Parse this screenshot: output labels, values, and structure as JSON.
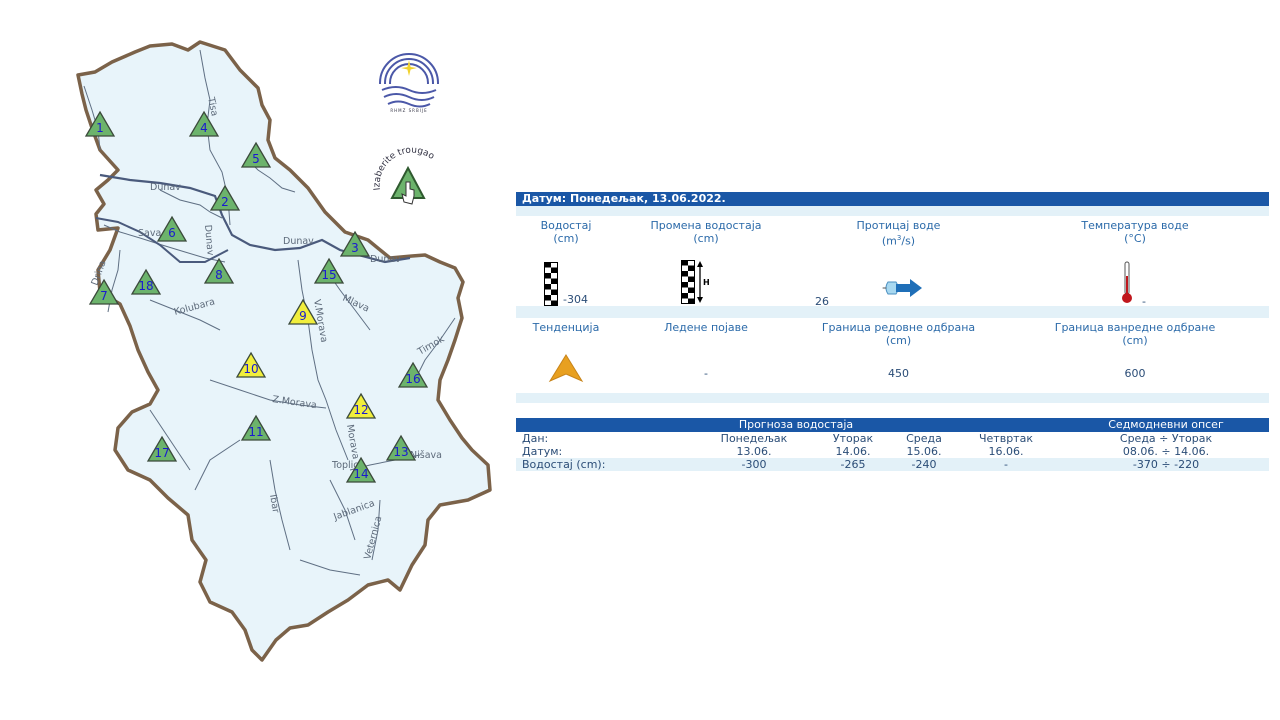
{
  "map": {
    "rivers": [
      "Tisa",
      "Dunav",
      "Dunav",
      "Dunav",
      "Dunav",
      "Sava",
      "Drina",
      "Kolubara",
      "V.Morava",
      "Mlava",
      "Timok",
      "Z.Morava",
      "Morava",
      "Nišava",
      "Toplica",
      "Jablanica",
      "Veternica",
      "Ibar"
    ],
    "stations": [
      {
        "n": "1",
        "color": "green"
      },
      {
        "n": "2",
        "color": "green"
      },
      {
        "n": "3",
        "color": "green"
      },
      {
        "n": "4",
        "color": "green"
      },
      {
        "n": "5",
        "color": "green"
      },
      {
        "n": "6",
        "color": "green"
      },
      {
        "n": "7",
        "color": "green"
      },
      {
        "n": "8",
        "color": "green"
      },
      {
        "n": "9",
        "color": "yellow"
      },
      {
        "n": "10",
        "color": "yellow"
      },
      {
        "n": "11",
        "color": "green"
      },
      {
        "n": "12",
        "color": "yellow"
      },
      {
        "n": "13",
        "color": "green"
      },
      {
        "n": "14",
        "color": "green"
      },
      {
        "n": "15",
        "color": "green"
      },
      {
        "n": "16",
        "color": "green"
      },
      {
        "n": "17",
        "color": "green"
      },
      {
        "n": "18",
        "color": "green"
      }
    ],
    "colors": {
      "green": "#6cb36c",
      "yellow": "#f1ee3c",
      "land": "#e8f4fa",
      "border": "#7b6249",
      "river": "#5f6f83",
      "danube": "#4a5a7c"
    },
    "hint_text": "Izaberite trougao",
    "logo_caption": "RHMZ SRBIJE"
  },
  "panel": {
    "date_header": "Датум: Понедељак, 13.06.2022.",
    "row1_labels": [
      {
        "line1": "Водостај",
        "line2": "(cm)"
      },
      {
        "line1": "Промена водостаја",
        "line2": "(cm)"
      },
      {
        "line1": "Протицај воде",
        "line2": "(m³/s)"
      },
      {
        "line1": "Температура воде",
        "line2": "(°C)"
      }
    ],
    "water_level": "-304",
    "level_change": "26",
    "discharge": "",
    "temperature": "-",
    "row2_labels": [
      {
        "line1": "Тенденција",
        "line2": ""
      },
      {
        "line1": "Ледене појаве",
        "line2": ""
      },
      {
        "line1": "Граница редовне одбрана",
        "line2": "(cm)"
      },
      {
        "line1": "Граница ванредне одбране",
        "line2": "(cm)"
      }
    ],
    "ice": "-",
    "regular_defense": "450",
    "emergency_defense": "600",
    "colors": {
      "header": "#1a57a6",
      "stripe": "#e3f1f8",
      "trend": "#e8a020"
    }
  },
  "forecast": {
    "title": "Прогноза водостаја",
    "range_title": "Седмодневни опсег",
    "rows": [
      {
        "label": "Дан:",
        "d1": "Понедељак",
        "d2": "Уторак",
        "d3": "Среда",
        "d4": "Четвртак",
        "range": "Среда ÷ Уторак"
      },
      {
        "label": "Датум:",
        "d1": "13.06.",
        "d2": "14.06.",
        "d3": "15.06.",
        "d4": "16.06.",
        "range": "08.06. ÷ 14.06."
      },
      {
        "label": "Водостај (cm):",
        "d1": "-300",
        "d2": "-265",
        "d3": "-240",
        "d4": "-",
        "range": "-370 ÷ -220"
      }
    ]
  }
}
